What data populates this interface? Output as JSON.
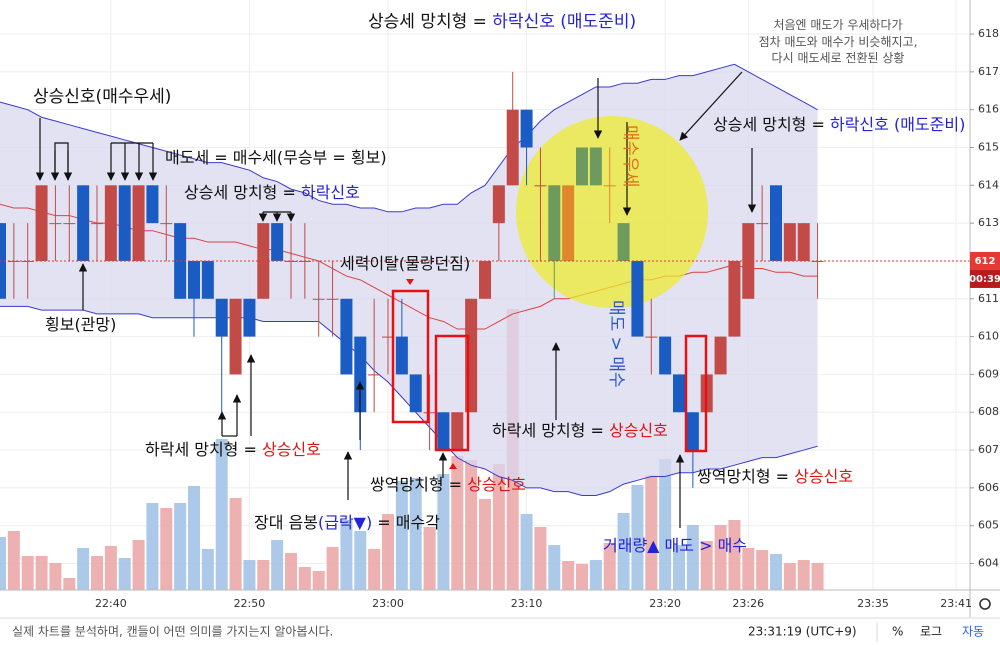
{
  "chart_data": {
    "type": "candlestick",
    "xlim": [
      "22:32",
      "23:42"
    ],
    "xticks": [
      "22:40",
      "22:50",
      "23:00",
      "23:10",
      "23:20",
      "23:26",
      "23:35",
      "23:41"
    ],
    "ylim": [
      603.3,
      618.9
    ],
    "yticks": [
      604,
      605,
      606,
      607,
      608,
      609,
      610,
      611,
      612,
      613,
      614,
      615,
      616,
      617,
      618
    ],
    "grid": true,
    "x": [
      "22:32",
      "22:33",
      "22:34",
      "22:35",
      "22:36",
      "22:37",
      "22:38",
      "22:39",
      "22:40",
      "22:41",
      "22:42",
      "22:43",
      "22:44",
      "22:45",
      "22:46",
      "22:47",
      "22:48",
      "22:49",
      "22:50",
      "22:51",
      "22:52",
      "22:53",
      "22:54",
      "22:55",
      "22:56",
      "22:57",
      "22:58",
      "22:59",
      "23:00",
      "23:01",
      "23:02",
      "23:03",
      "23:04",
      "23:05",
      "23:06",
      "23:07",
      "23:08",
      "23:09",
      "23:10",
      "23:11",
      "23:12",
      "23:13",
      "23:14",
      "23:15",
      "23:16",
      "23:17",
      "23:18",
      "23:19",
      "23:20",
      "23:21",
      "23:22",
      "23:23",
      "23:24",
      "23:25",
      "23:26",
      "23:27",
      "23:28",
      "23:29",
      "23:30",
      "23:31"
    ],
    "open": [
      613,
      612,
      612,
      612,
      613,
      613,
      614,
      613,
      612,
      614,
      612,
      614,
      613,
      613,
      612,
      612,
      611,
      609,
      611,
      611,
      613,
      612,
      612,
      611,
      611,
      611,
      610,
      609,
      610,
      610,
      609,
      608,
      608,
      607,
      608,
      611,
      613,
      614,
      616,
      614,
      614,
      612,
      614,
      615,
      614,
      613,
      612,
      610,
      610,
      609,
      608,
      608,
      609,
      610,
      611,
      613,
      614,
      612,
      612,
      612
    ],
    "high": [
      613,
      613,
      613,
      614,
      614,
      614,
      614,
      614,
      614,
      614,
      614,
      614,
      614,
      613,
      612,
      612,
      611,
      611,
      611,
      613,
      613,
      613,
      613,
      612,
      612,
      611,
      610,
      611,
      611,
      611,
      609,
      609,
      608,
      608,
      611,
      612,
      614,
      617,
      616,
      615,
      614,
      614,
      615,
      615,
      615,
      613,
      612,
      611,
      610,
      609,
      608,
      609,
      610,
      612,
      613,
      614,
      614,
      613,
      613,
      613
    ],
    "low": [
      611,
      611,
      611,
      612,
      612,
      612,
      612,
      612,
      612,
      612,
      612,
      613,
      612,
      611,
      610,
      611,
      608,
      609,
      610,
      611,
      612,
      611,
      611,
      610,
      610,
      609,
      607,
      608,
      609,
      609,
      608,
      607,
      607,
      607,
      608,
      611,
      612,
      614,
      614,
      612,
      611,
      612,
      614,
      614,
      613,
      612,
      610,
      609,
      609,
      608,
      606,
      608,
      609,
      610,
      611,
      612,
      612,
      612,
      612,
      611
    ],
    "close": [
      611,
      612,
      612,
      614,
      613,
      613,
      612,
      613,
      614,
      612,
      614,
      613,
      613,
      611,
      611,
      611,
      610,
      611,
      610,
      613,
      612,
      612,
      612,
      611,
      611,
      609,
      608,
      609,
      610,
      609,
      608,
      608,
      607,
      608,
      611,
      612,
      614,
      616,
      615,
      614,
      612,
      614,
      615,
      614,
      614,
      612,
      610,
      610,
      609,
      608,
      607,
      609,
      610,
      612,
      613,
      613,
      612,
      613,
      613,
      612
    ],
    "candle_colors": [
      "#1a5cc4",
      "#c24b47",
      "#c24b47",
      "#c24b47",
      "#c24b47",
      "#c24b47",
      "#1a5cc4",
      "#c24b47",
      "#c24b47",
      "#1a5cc4",
      "#c24b47",
      "#1a5cc4",
      "#c24b47",
      "#1a5cc4",
      "#1a5cc4",
      "#1a5cc4",
      "#1a5cc4",
      "#c24b47",
      "#1a5cc4",
      "#c24b47",
      "#1a5cc4",
      "#c24b47",
      "#c24b47",
      "#c24b47",
      "#c24b47",
      "#1a5cc4",
      "#1a5cc4",
      "#c24b47",
      "#c24b47",
      "#1a5cc4",
      "#1a5cc4",
      "#c24b47",
      "#1a5cc4",
      "#c24b47",
      "#c24b47",
      "#c24b47",
      "#c24b47",
      "#c24b47",
      "#1a5cc4",
      "#c24b47",
      "#6e9a5e",
      "#e0872e",
      "#6e9a5e",
      "#6e9a5e",
      "#e0872e",
      "#6e9a5e",
      "#1a5cc4",
      "#c24b47",
      "#1a5cc4",
      "#1a5cc4",
      "#1a5cc4",
      "#c24b47",
      "#c24b47",
      "#c24b47",
      "#c24b47",
      "#c24b47",
      "#1a5cc4",
      "#c24b47",
      "#c24b47",
      "#c24b47"
    ],
    "volume": [
      53,
      59,
      34,
      34,
      27,
      12,
      42,
      34,
      44,
      32,
      50,
      87,
      82,
      87,
      104,
      41,
      151,
      92,
      30,
      30,
      50,
      37,
      23,
      19,
      43,
      70,
      59,
      41,
      76,
      109,
      112,
      63,
      116,
      134,
      130,
      91,
      126,
      281,
      76,
      63,
      45,
      29,
      26,
      30,
      47,
      77,
      105,
      115,
      131,
      45,
      65,
      49,
      65,
      70,
      42,
      40,
      36,
      27,
      30,
      27
    ],
    "volume_up_color": "#eba3a3",
    "volume_down_color": "#9fc0e6",
    "bands": {
      "upper": [
        616.2,
        616.1,
        616.0,
        615.8,
        615.7,
        615.6,
        615.5,
        615.4,
        615.3,
        615.2,
        615.1,
        615.0,
        614.9,
        614.8,
        614.7,
        614.6,
        614.6,
        614.5,
        614.4,
        614.2,
        614.1,
        613.9,
        613.8,
        613.6,
        613.5,
        613.5,
        613.4,
        613.4,
        613.3,
        613.3,
        613.4,
        613.4,
        613.5,
        613.5,
        613.8,
        614.0,
        614.5,
        615.0,
        615.3,
        615.7,
        616.0,
        616.2,
        616.4,
        616.6,
        616.6,
        616.7,
        616.7,
        616.8,
        616.8,
        616.9,
        616.9,
        617.0,
        617.1,
        617.2,
        617.0,
        616.8,
        616.6,
        616.4,
        616.2,
        616.0
      ],
      "middle": [
        613.5,
        613.4,
        613.4,
        613.3,
        613.2,
        613.2,
        613.1,
        613.0,
        613.0,
        612.9,
        612.8,
        612.8,
        612.7,
        612.6,
        612.6,
        612.5,
        612.5,
        612.5,
        612.4,
        612.3,
        612.3,
        612.2,
        612.1,
        612.0,
        611.8,
        611.6,
        611.5,
        611.3,
        611.1,
        610.9,
        610.7,
        610.5,
        610.4,
        610.2,
        610.2,
        610.2,
        610.4,
        610.6,
        610.7,
        610.8,
        611.0,
        611.0,
        611.1,
        611.2,
        611.3,
        611.4,
        611.5,
        611.5,
        611.6,
        611.6,
        611.7,
        611.7,
        611.8,
        611.9,
        611.8,
        611.8,
        611.7,
        611.7,
        611.6,
        611.6
      ],
      "lower": [
        610.8,
        610.8,
        610.8,
        610.7,
        610.7,
        610.7,
        610.7,
        610.6,
        610.6,
        610.6,
        610.6,
        610.5,
        610.5,
        610.5,
        610.5,
        610.5,
        610.5,
        610.5,
        610.5,
        610.4,
        610.4,
        610.4,
        610.4,
        610.4,
        610.1,
        609.8,
        609.5,
        609.1,
        608.8,
        608.4,
        608.0,
        607.6,
        607.2,
        606.8,
        606.6,
        606.5,
        606.3,
        606.2,
        606.0,
        606.0,
        605.9,
        605.9,
        605.8,
        605.8,
        605.9,
        606.1,
        606.2,
        606.3,
        606.3,
        606.4,
        606.4,
        606.5,
        606.5,
        606.6,
        606.7,
        606.8,
        606.8,
        606.9,
        607.0,
        607.1
      ],
      "upper_color": "#3a3ad0",
      "middle_color": "#e04040",
      "lower_color": "#3a3ad0",
      "fill_color": "#d8d8ef"
    },
    "last_price": 612,
    "countdown": "00:39",
    "annotations": [
      [
        {
          "text": "상승세 망치형 = ",
          "color": "#111111"
        },
        {
          "text": "하락신호 (매도준비)",
          "color": "#2323d8"
        }
      ],
      [
        {
          "text": "처음엔 매도가 우세하다가",
          "color": "#555555"
        }
      ],
      [
        {
          "text": "점차 매도와 매수가 비슷해지고,",
          "color": "#555555"
        }
      ],
      [
        {
          "text": "다시 매도세로 전환된 상황",
          "color": "#555555"
        }
      ],
      [
        {
          "text": "상승신호(매수우세)",
          "color": "#111111"
        }
      ],
      [
        {
          "text": "매도세 = 매수세(무승부 = 횡보)",
          "color": "#111111"
        }
      ],
      [
        {
          "text": "상승세 망치형 = ",
          "color": "#111111"
        },
        {
          "text": "하락신호",
          "color": "#2323d8"
        }
      ],
      [
        {
          "text": "상승세 망치형 = ",
          "color": "#111111"
        },
        {
          "text": "하락신호 (매도준비)",
          "color": "#2323d8"
        }
      ],
      [
        {
          "text": "세력이탈(물량던짐)",
          "color": "#111111"
        }
      ],
      [
        {
          "text": "매수우세",
          "color": "#e0701a"
        }
      ],
      [
        {
          "text": "매도 > 매수",
          "color": "#2a55c8"
        }
      ],
      [
        {
          "text": "횡보(관망)",
          "color": "#111111"
        }
      ],
      [
        {
          "text": "하락세 망치형 = ",
          "color": "#111111"
        },
        {
          "text": "상승신호",
          "color": "#e01414"
        }
      ],
      [
        {
          "text": "하락세 망치형 = ",
          "color": "#111111"
        },
        {
          "text": "상승신호",
          "color": "#e01414"
        }
      ],
      [
        {
          "text": "쌍역망치형 = ",
          "color": "#111111"
        },
        {
          "text": "상승신호",
          "color": "#e01414"
        }
      ],
      [
        {
          "text": "쌍역망치형 = ",
          "color": "#111111"
        },
        {
          "text": "상승신호",
          "color": "#e01414"
        }
      ],
      [
        {
          "text": "장대 음봉",
          "color": "#111111"
        },
        {
          "text": "(급락▼)",
          "color": "#2323d8"
        },
        {
          "text": " = 매수각",
          "color": "#111111"
        }
      ],
      [
        {
          "text": "거래량▲ 매도 > 매수",
          "color": "#2323d8"
        }
      ]
    ],
    "footer": {
      "caption": "실제 차트를 분석하며, 캔들이 어떤 의미를 가지는지 알아봅시다.",
      "time": "23:31:19 (UTC+9)",
      "percent": "%",
      "log": "로그",
      "auto": "자동"
    }
  }
}
